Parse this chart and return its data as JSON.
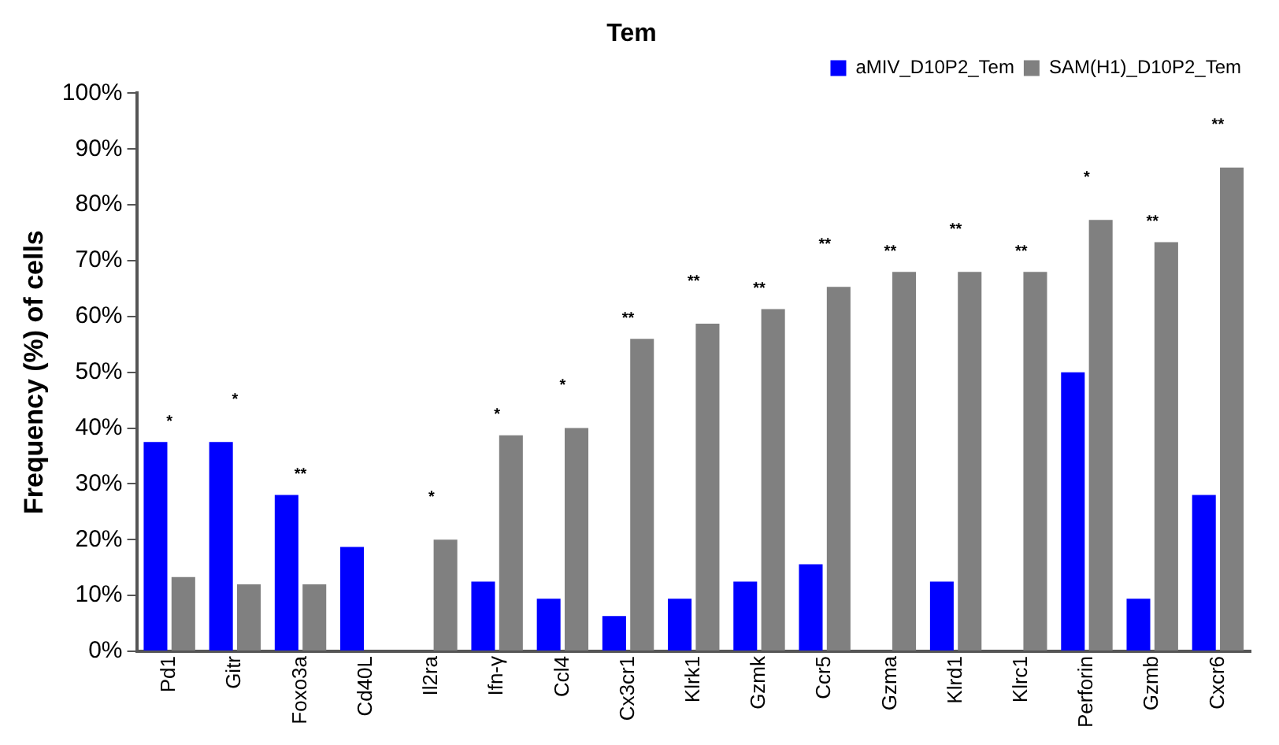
{
  "chart_data": {
    "type": "bar",
    "title": "Tem",
    "ylabel": "Frequency (%) of cells",
    "categories": [
      "Pd1",
      "Gitr",
      "Foxo3a",
      "Cd40L",
      "Il2ra",
      "Ifn-γ",
      "Ccl4",
      "Cx3cr1",
      "Klrk1",
      "Gzmk",
      "Ccr5",
      "Gzma",
      "Klrd1",
      "Klrc1",
      "Perforin",
      "Gzmb",
      "Cxcr6"
    ],
    "series": [
      {
        "name": "aMIV_D10P2_Tem",
        "color": "#0000ff",
        "values": [
          37.5,
          37.5,
          28,
          18.7,
          0,
          12.5,
          9.4,
          6.3,
          9.4,
          12.5,
          15.6,
          0,
          12.5,
          0,
          50,
          9.4,
          28
        ]
      },
      {
        "name": "SAM(H1)_D10P2_Tem",
        "color": "#808080",
        "values": [
          13.3,
          12,
          12,
          0,
          20,
          38.7,
          40,
          56,
          58.7,
          61.3,
          65.3,
          68,
          68,
          68,
          77.3,
          73.3,
          86.7
        ]
      }
    ],
    "ylim": [
      0,
      100
    ],
    "yticks": [
      {
        "value": 0,
        "label": "0%"
      },
      {
        "value": 10,
        "label": "10%"
      },
      {
        "value": 20,
        "label": "20%"
      },
      {
        "value": 30,
        "label": "30%"
      },
      {
        "value": 40,
        "label": "40%"
      },
      {
        "value": 50,
        "label": "50%"
      },
      {
        "value": 60,
        "label": "60%"
      },
      {
        "value": 70,
        "label": "70%"
      },
      {
        "value": 80,
        "label": "80%"
      },
      {
        "value": 90,
        "label": "90%"
      },
      {
        "value": 100,
        "label": "100%"
      }
    ],
    "grid": false,
    "legend": "top right",
    "annotations": [
      "*",
      "*",
      "**",
      "*",
      "*",
      "*",
      "**",
      "**",
      "**",
      "**",
      "**",
      "**",
      "**",
      "*",
      "**",
      "**"
    ]
  }
}
